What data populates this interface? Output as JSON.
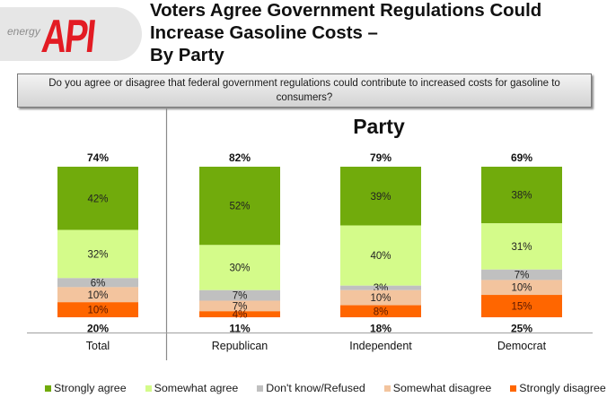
{
  "logo": {
    "prefix": "energy",
    "brand": "API"
  },
  "header": {
    "title_lines": [
      "Voters Agree Government Regulations Could",
      "Increase Gasoline Costs –",
      "By Party"
    ]
  },
  "question": "Do you agree or disagree that federal government regulations could contribute to increased costs for gasoline to consumers?",
  "chart_data": {
    "type": "bar",
    "stacked": true,
    "orientation": "vertical",
    "title": "Party",
    "unit": "%",
    "categories": [
      "Total",
      "Republican",
      "Independent",
      "Democrat"
    ],
    "series": [
      {
        "name": "Strongly agree",
        "color": "#71ab0c",
        "values": [
          42,
          52,
          39,
          38
        ],
        "labels": [
          "42%",
          "52%",
          "39%",
          "38%"
        ]
      },
      {
        "name": "Somewhat agree",
        "color": "#d4fb8a",
        "values": [
          32,
          30,
          40,
          31
        ],
        "labels": [
          "32%",
          "30%",
          "40%",
          "31%"
        ]
      },
      {
        "name": "Don't know/Refused",
        "color": "#c0c0c0",
        "values": [
          6,
          7,
          3,
          7
        ],
        "labels": [
          "6%",
          "7%",
          "3%",
          "7%"
        ]
      },
      {
        "name": "Somewhat disagree",
        "color": "#f3c49e",
        "values": [
          10,
          7,
          10,
          10
        ],
        "labels": [
          "10%",
          "7%",
          "10%",
          "10%"
        ]
      },
      {
        "name": "Strongly disagree",
        "color": "#ff6600",
        "values": [
          10,
          4,
          8,
          15
        ],
        "labels": [
          "10%",
          "4%",
          "8%",
          "15%"
        ]
      }
    ],
    "agree_totals": [
      "74%",
      "82%",
      "79%",
      "69%"
    ],
    "disagree_totals": [
      "20%",
      "11%",
      "18%",
      "25%"
    ],
    "legend_position": "bottom",
    "grid": false
  }
}
